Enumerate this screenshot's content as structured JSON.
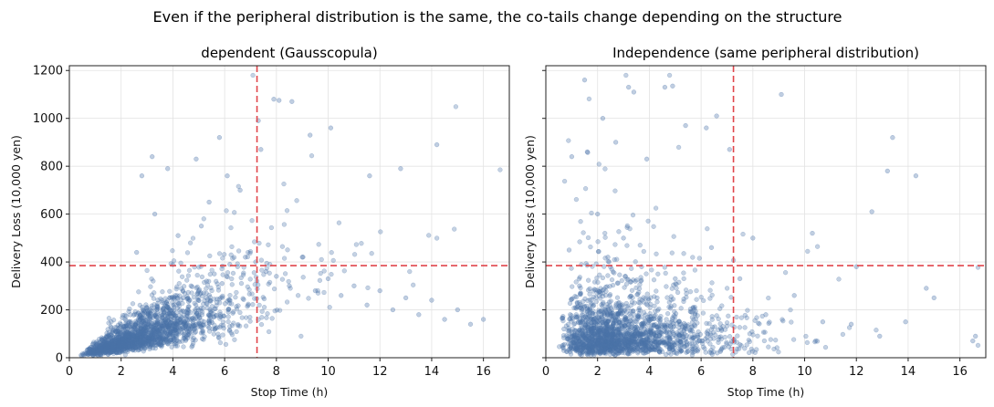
{
  "suptitle": "Even if the peripheral distribution is the same, the co-tails change depending on the structure",
  "chart_data": [
    {
      "type": "scatter",
      "title": "dependent (Gausscopula)",
      "xlabel": "Stop Time (h)",
      "ylabel": "Delivery Loss (10,000 yen)",
      "xlim": [
        0,
        17
      ],
      "ylim": [
        0,
        1220
      ],
      "xticks": [
        0,
        2,
        4,
        6,
        8,
        10,
        12,
        14,
        16
      ],
      "yticks": [
        0,
        200,
        400,
        600,
        800,
        1000,
        1200
      ],
      "grid": true,
      "marker_color": "#4a72a8",
      "threshold_color": "#e0454b",
      "threshold_x": 7.25,
      "threshold_y": 385,
      "n_points": 2000,
      "points": {
        "x": [
          0.6,
          0.8,
          1.0,
          1.1,
          1.2,
          1.3,
          1.5,
          1.6,
          1.8,
          1.9,
          2.1,
          2.3,
          2.5,
          2.7,
          2.9,
          3.1,
          3.4,
          3.6,
          3.9,
          4.1,
          4.4,
          4.7,
          5.0,
          5.3,
          5.6,
          5.9,
          6.2,
          6.5,
          6.8,
          7.2,
          7.6,
          8.0,
          8.5,
          9.0,
          9.5,
          10.0,
          10.5,
          11.0,
          11.5,
          12.0,
          12.5,
          13.0,
          13.5,
          14.0,
          14.5,
          15.0,
          15.5,
          16.0,
          2.6,
          3.3,
          4.2,
          5.1,
          5.8,
          6.6,
          7.4,
          7.9,
          8.6,
          8.1,
          10.1,
          12.8,
          14.2,
          3.2,
          4.9,
          6.1,
          3.8,
          2.8,
          5.4,
          7.3,
          9.3,
          11.6
        ],
        "y": [
          20,
          35,
          45,
          60,
          40,
          80,
          70,
          95,
          110,
          85,
          130,
          150,
          120,
          170,
          190,
          160,
          210,
          230,
          200,
          260,
          250,
          300,
          280,
          320,
          350,
          310,
          390,
          380,
          420,
          400,
          360,
          340,
          300,
          420,
          280,
          330,
          260,
          300,
          220,
          280,
          200,
          250,
          180,
          240,
          160,
          200,
          140,
          160,
          440,
          600,
          510,
          550,
          920,
          700,
          870,
          1080,
          1070,
          1075,
          960,
          790,
          890,
          840,
          830,
          760,
          790,
          760,
          650,
          990,
          930,
          760
        ]
      }
    },
    {
      "type": "scatter",
      "title": "Independence (same peripheral distribution)",
      "xlabel": "Stop Time (h)",
      "ylabel": "Delivery Loss (10,000 yen)",
      "xlim": [
        0,
        17
      ],
      "ylim": [
        0,
        1220
      ],
      "xticks": [
        0,
        2,
        4,
        6,
        8,
        10,
        12,
        14,
        16
      ],
      "yticks": [
        0,
        200,
        400,
        600,
        800,
        1000,
        1200
      ],
      "grid": true,
      "marker_color": "#4a72a8",
      "threshold_color": "#e0454b",
      "threshold_x": 7.25,
      "threshold_y": 385,
      "n_points": 2000,
      "points": {
        "x": [
          1.5,
          3.2,
          3.4,
          4.6,
          4.9,
          2.2,
          2.7,
          6.6,
          9.1,
          6.2,
          1.0,
          1.6,
          3.9,
          5.4,
          7.1,
          13.4,
          13.2,
          12.6,
          14.3,
          8.0,
          10.3,
          12.0,
          14.7,
          16.5,
          16.6,
          15.0,
          13.9,
          0.7,
          0.9,
          1.3,
          2.0,
          2.4,
          3.0,
          3.7,
          4.3,
          5.0,
          5.7,
          6.4,
          7.5,
          8.5,
          9.6,
          10.7,
          11.8,
          12.9
        ],
        "y": [
          1160,
          1130,
          1110,
          1130,
          1135,
          1000,
          900,
          1010,
          1100,
          960,
          840,
          860,
          830,
          970,
          870,
          920,
          780,
          610,
          760,
          500,
          520,
          380,
          290,
          70,
          90,
          250,
          150,
          120,
          450,
          300,
          600,
          420,
          500,
          380,
          250,
          330,
          210,
          460,
          330,
          180,
          260,
          150,
          140,
          90
        ]
      }
    }
  ]
}
